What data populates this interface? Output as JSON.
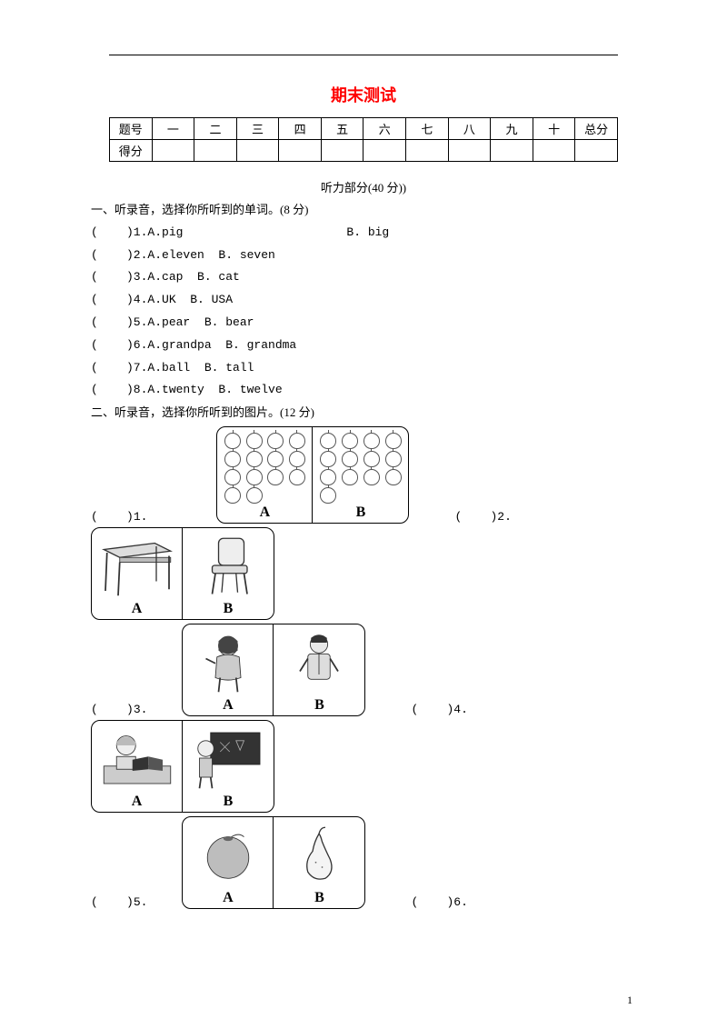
{
  "title": "期末测试",
  "title_color": "#ff0000",
  "score_table": {
    "row1_label": "题号",
    "row2_label": "得分",
    "columns": [
      "一",
      "二",
      "三",
      "四",
      "五",
      "六",
      "七",
      "八",
      "九",
      "十",
      "总分"
    ]
  },
  "listening_header": "听力部分(40 分))",
  "section1": {
    "heading": "一、听录音，选择你所听到的单词。(8 分)",
    "items": [
      {
        "n": "1",
        "a": "A.pig",
        "b": "B. big",
        "wide": true
      },
      {
        "n": "2",
        "a": "A.eleven",
        "b": "B. seven"
      },
      {
        "n": "3",
        "a": "A.cap",
        "b": "B. cat"
      },
      {
        "n": "4",
        "a": "A.UK",
        "b": "B. USA"
      },
      {
        "n": "5",
        "a": "A.pear",
        "b": "B. bear"
      },
      {
        "n": "6",
        "a": "A.grandpa",
        "b": "B. grandma"
      },
      {
        "n": "7",
        "a": "A.ball",
        "b": "B. tall"
      },
      {
        "n": "8",
        "a": "A.twenty",
        "b": "B. twelve"
      }
    ]
  },
  "section2": {
    "heading": "二、听录音，选择你所听到的图片。(12 分)",
    "pairs": [
      {
        "left_n": "1",
        "right_n": "2",
        "a_label": "A",
        "b_label": "B",
        "a_count": 14,
        "b_count": 13,
        "type": "apples"
      },
      {
        "left_n": "3",
        "right_n": "4",
        "a_label": "A",
        "b_label": "B",
        "type": "people"
      },
      {
        "left_n": "5",
        "right_n": "6",
        "a_label": "A",
        "b_label": "B",
        "type": "fruits"
      }
    ],
    "furniture": {
      "a_label": "A",
      "b_label": "B"
    },
    "classroom": {
      "a_label": "A",
      "b_label": "B"
    }
  },
  "page_number": "1",
  "paren_open": "(",
  "paren_close": ")",
  "paren_spacer": "    "
}
